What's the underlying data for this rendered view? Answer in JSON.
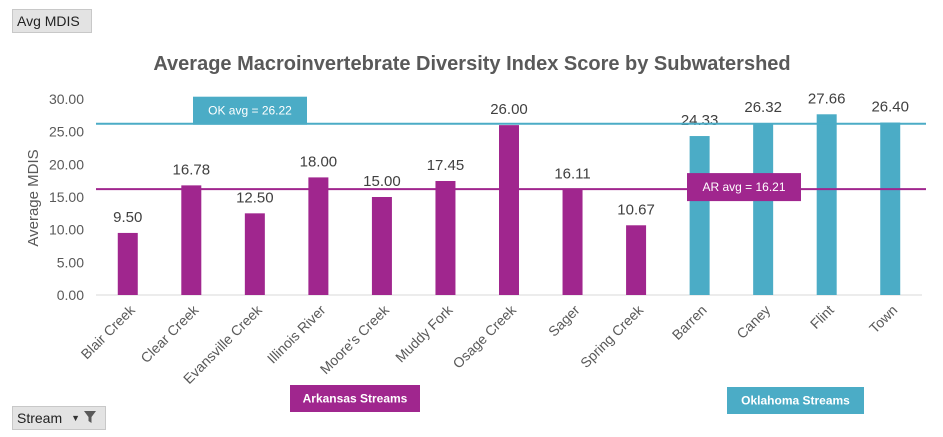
{
  "controls": {
    "value_field": "Avg MDIS",
    "filter_field": "Stream"
  },
  "chart_data": {
    "type": "bar",
    "title": "Average Macroinvertebrate Diversity Index Score by Subwatershed",
    "xlabel": "",
    "ylabel": "Average MDIS",
    "ylim": [
      0,
      30
    ],
    "ytick_step": 5,
    "ytick_decimals": 2,
    "grid": false,
    "categories": [
      "Blair Creek",
      "Clear Creek",
      "Evansville Creek",
      "Illinois River",
      "Moore's Creek",
      "Muddy Fork",
      "Osage Creek",
      "Sager",
      "Spring Creek",
      "Barren",
      "Caney",
      "Flint",
      "Town"
    ],
    "values": [
      9.5,
      16.78,
      12.5,
      18.0,
      15.0,
      17.45,
      26.0,
      16.11,
      10.67,
      24.33,
      26.32,
      27.66,
      26.4
    ],
    "data_labels": [
      "9.50",
      "16.78",
      "12.50",
      "18.00",
      "15.00",
      "17.45",
      "26.00",
      "16.11",
      "10.67",
      "24.33",
      "26.32",
      "27.66",
      "26.40"
    ],
    "groups": [
      {
        "label": "Arkansas Streams",
        "color": "#a0268e",
        "start": 0,
        "end": 8
      },
      {
        "label": "Oklahoma Streams",
        "color": "#4bacc6",
        "start": 9,
        "end": 12
      }
    ],
    "reference_lines": [
      {
        "label": "OK avg = 26.22",
        "value": 26.22,
        "color": "#4bacc6"
      },
      {
        "label": "AR avg = 16.21",
        "value": 16.21,
        "color": "#a0268e"
      }
    ]
  }
}
